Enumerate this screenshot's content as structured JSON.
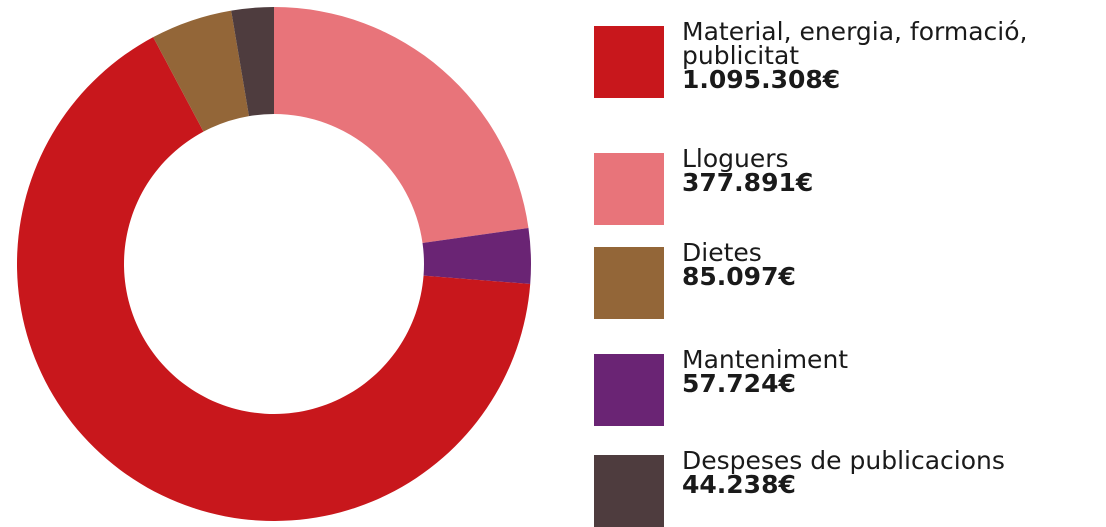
{
  "chart_data": {
    "type": "donut",
    "categories": [
      "Material, energia, formació, publicitat",
      "Lloguers",
      "Dietes",
      "Manteniment",
      "Despeses de publicacions"
    ],
    "values": [
      1095308,
      377891,
      85097,
      57724,
      44238
    ],
    "value_labels": [
      "1.095.308€",
      "377.891€",
      "85.097€",
      "57.724€",
      "44.238€"
    ],
    "colors": [
      "#c8171c",
      "#e8747a",
      "#936638",
      "#6a2474",
      "#4e3c3e"
    ],
    "legend": "right"
  }
}
